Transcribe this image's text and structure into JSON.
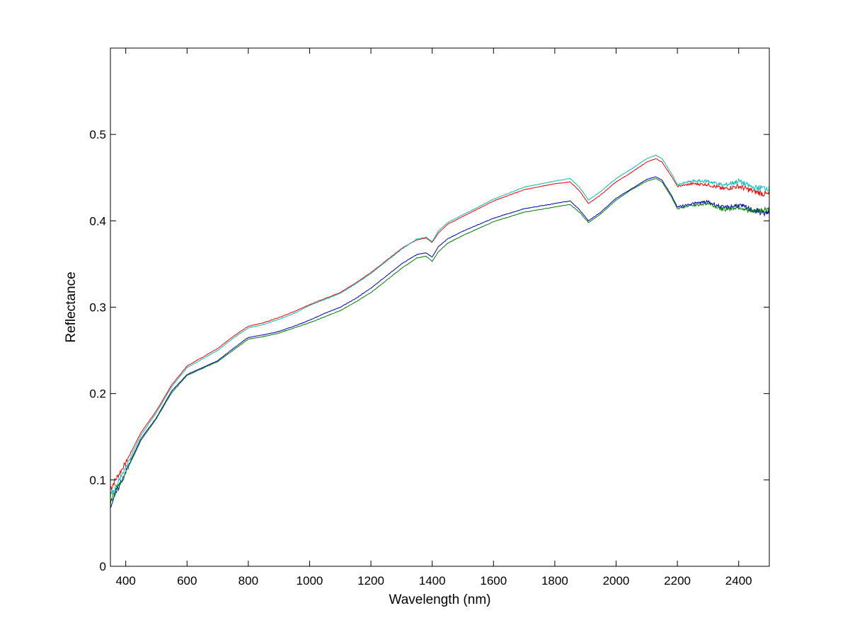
{
  "chart_data": {
    "type": "line",
    "title": "",
    "xlabel": "Wavelength (nm)",
    "ylabel": "Reflectance",
    "xlim": [
      350,
      2500
    ],
    "ylim": [
      0,
      0.6
    ],
    "x_ticks": [
      400,
      600,
      800,
      1000,
      1200,
      1400,
      1600,
      1800,
      2000,
      2200,
      2400
    ],
    "y_ticks": [
      0,
      0.1,
      0.2,
      0.3,
      0.4,
      0.5
    ],
    "x_tick_labels": [
      "400",
      "600",
      "800",
      "1000",
      "1200",
      "1400",
      "1600",
      "1800",
      "2000",
      "2200",
      "2400"
    ],
    "y_tick_labels": [
      "0",
      "0.1",
      "0.2",
      "0.3",
      "0.4",
      "0.5"
    ],
    "grid": false,
    "legend": "none",
    "x": [
      350,
      400,
      450,
      500,
      550,
      600,
      650,
      700,
      750,
      800,
      850,
      900,
      950,
      1000,
      1050,
      1100,
      1150,
      1200,
      1250,
      1300,
      1350,
      1380,
      1400,
      1420,
      1450,
      1500,
      1600,
      1700,
      1800,
      1850,
      1880,
      1910,
      1950,
      2000,
      2050,
      2100,
      2130,
      2150,
      2180,
      2200,
      2250,
      2300,
      2350,
      2400,
      2450,
      2500
    ],
    "series": [
      {
        "color": "#ff0000",
        "noise": 0.006,
        "values": [
          0.09,
          0.12,
          0.155,
          0.18,
          0.21,
          0.232,
          0.242,
          0.252,
          0.266,
          0.278,
          0.282,
          0.288,
          0.295,
          0.303,
          0.31,
          0.317,
          0.328,
          0.34,
          0.354,
          0.368,
          0.378,
          0.38,
          0.375,
          0.386,
          0.396,
          0.405,
          0.423,
          0.436,
          0.443,
          0.445,
          0.435,
          0.42,
          0.43,
          0.445,
          0.456,
          0.468,
          0.472,
          0.468,
          0.452,
          0.44,
          0.443,
          0.442,
          0.437,
          0.44,
          0.434,
          0.43
        ]
      },
      {
        "color": "#00bfbf",
        "noise": 0.006,
        "values": [
          0.08,
          0.115,
          0.152,
          0.178,
          0.208,
          0.23,
          0.24,
          0.25,
          0.264,
          0.276,
          0.28,
          0.286,
          0.293,
          0.302,
          0.309,
          0.316,
          0.327,
          0.339,
          0.353,
          0.367,
          0.379,
          0.381,
          0.376,
          0.388,
          0.398,
          0.407,
          0.425,
          0.439,
          0.446,
          0.449,
          0.439,
          0.424,
          0.434,
          0.449,
          0.46,
          0.472,
          0.476,
          0.472,
          0.455,
          0.442,
          0.446,
          0.446,
          0.441,
          0.446,
          0.438,
          0.438
        ]
      },
      {
        "color": "#0000bf",
        "noise": 0.006,
        "values": [
          0.07,
          0.11,
          0.148,
          0.172,
          0.203,
          0.222,
          0.23,
          0.238,
          0.252,
          0.265,
          0.268,
          0.272,
          0.278,
          0.285,
          0.293,
          0.3,
          0.31,
          0.322,
          0.336,
          0.35,
          0.361,
          0.363,
          0.358,
          0.37,
          0.379,
          0.388,
          0.403,
          0.414,
          0.42,
          0.423,
          0.413,
          0.4,
          0.41,
          0.426,
          0.437,
          0.448,
          0.451,
          0.447,
          0.43,
          0.416,
          0.42,
          0.422,
          0.415,
          0.418,
          0.412,
          0.408
        ]
      },
      {
        "color": "#008000",
        "noise": 0.006,
        "values": [
          0.075,
          0.108,
          0.146,
          0.171,
          0.201,
          0.221,
          0.229,
          0.237,
          0.25,
          0.263,
          0.266,
          0.27,
          0.276,
          0.282,
          0.289,
          0.296,
          0.306,
          0.317,
          0.331,
          0.345,
          0.357,
          0.359,
          0.353,
          0.364,
          0.374,
          0.383,
          0.399,
          0.41,
          0.416,
          0.419,
          0.41,
          0.398,
          0.408,
          0.424,
          0.436,
          0.446,
          0.449,
          0.445,
          0.428,
          0.414,
          0.418,
          0.42,
          0.413,
          0.416,
          0.41,
          0.414
        ]
      }
    ]
  }
}
